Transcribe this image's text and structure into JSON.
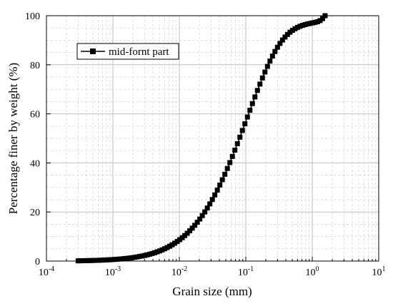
{
  "chart_data": {
    "type": "line",
    "xscale": "log",
    "xlim": [
      0.0001,
      10
    ],
    "ylim": [
      0,
      100
    ],
    "xlabel": "Grain size (mm)",
    "ylabel": "Percentage finer by weight (%)",
    "x_ticks": [
      {
        "base": "10",
        "exp": "-4"
      },
      {
        "base": "10",
        "exp": "-3"
      },
      {
        "base": "10",
        "exp": "-2"
      },
      {
        "base": "10",
        "exp": "-1"
      },
      {
        "base": "10",
        "exp": "0"
      },
      {
        "base": "10",
        "exp": "1"
      }
    ],
    "y_ticks": [
      "0",
      "20",
      "40",
      "60",
      "80",
      "100"
    ],
    "grid": true,
    "legend_position": "top-left",
    "series": [
      {
        "name": "mid-fornt part",
        "marker": "square",
        "color": "#000000",
        "x": [
          0.0003,
          0.00032,
          0.00035,
          0.00038,
          0.00041,
          0.00045,
          0.00049,
          0.00053,
          0.00058,
          0.00063,
          0.00069,
          0.00075,
          0.00082,
          0.00089,
          0.00097,
          0.00106,
          0.00116,
          0.00126,
          0.00138,
          0.0015,
          0.00164,
          0.00179,
          0.00195,
          0.00213,
          0.00232,
          0.00253,
          0.00276,
          0.00301,
          0.00328,
          0.00358,
          0.0039,
          0.00426,
          0.00464,
          0.00506,
          0.00552,
          0.00602,
          0.00657,
          0.00716,
          0.00781,
          0.00852,
          0.0093,
          0.01014,
          0.01106,
          0.01206,
          0.01315,
          0.01435,
          0.01565,
          0.01707,
          0.01862,
          0.02031,
          0.02215,
          0.02416,
          0.02635,
          0.02874,
          0.03135,
          0.03419,
          0.03729,
          0.04068,
          0.04437,
          0.04839,
          0.05278,
          0.05757,
          0.06279,
          0.06849,
          0.0747,
          0.08148,
          0.08887,
          0.09693,
          0.10572,
          0.11531,
          0.12578,
          0.13718,
          0.14963,
          0.1632,
          0.17801,
          0.19415,
          0.21177,
          0.23098,
          0.25193,
          0.27479,
          0.29972,
          0.32691,
          0.35656,
          0.38891,
          0.42419,
          0.46267,
          0.50464,
          0.55042,
          0.60035,
          0.65481,
          0.71422,
          0.77901,
          0.84968,
          0.92676,
          1.01083,
          1.10253,
          1.20255,
          1.31164,
          1.43063,
          1.56041
        ],
        "y": [
          0.1,
          0.12,
          0.14,
          0.16,
          0.19,
          0.21,
          0.24,
          0.27,
          0.3,
          0.34,
          0.38,
          0.43,
          0.48,
          0.53,
          0.59,
          0.66,
          0.74,
          0.82,
          0.91,
          1.01,
          1.12,
          1.24,
          1.38,
          1.53,
          1.69,
          1.87,
          2.07,
          2.29,
          2.53,
          2.8,
          3.09,
          3.41,
          3.76,
          4.14,
          4.56,
          5.02,
          5.52,
          6.06,
          6.64,
          7.28,
          7.97,
          8.72,
          9.52,
          10.39,
          11.33,
          12.33,
          13.41,
          14.57,
          15.8,
          17.12,
          18.53,
          20.03,
          21.62,
          23.3,
          25.08,
          26.95,
          28.92,
          30.98,
          33.14,
          35.38,
          37.72,
          40.14,
          42.63,
          45.2,
          47.82,
          50.5,
          53.21,
          55.95,
          58.7,
          61.45,
          64.18,
          66.88,
          69.54,
          72.12,
          74.63,
          77.04,
          79.33,
          81.5,
          83.53,
          85.41,
          87.13,
          88.69,
          90.08,
          91.3,
          92.36,
          93.27,
          94.04,
          94.69,
          95.23,
          95.68,
          96.05,
          96.36,
          96.62,
          96.85,
          97.06,
          97.28,
          97.56,
          98.0,
          98.8,
          100
        ]
      }
    ]
  }
}
